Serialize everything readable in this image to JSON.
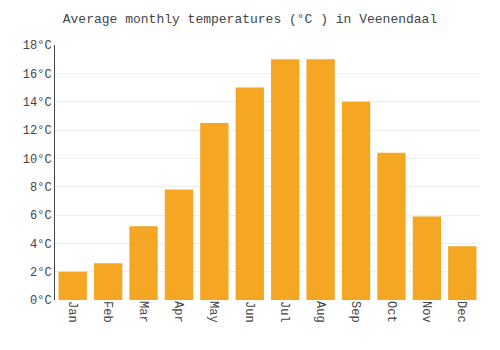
{
  "chart_data": {
    "type": "bar",
    "title": "Average monthly temperatures (°C ) in Veenendaal",
    "categories": [
      "Jan",
      "Feb",
      "Mar",
      "Apr",
      "May",
      "Jun",
      "Jul",
      "Aug",
      "Sep",
      "Oct",
      "Nov",
      "Dec"
    ],
    "values": [
      2.0,
      2.6,
      5.2,
      7.8,
      12.5,
      15.0,
      17.0,
      17.0,
      14.0,
      10.4,
      5.9,
      3.8
    ],
    "color": "#F5A623",
    "ylim": [
      0,
      18
    ],
    "yticks": [
      {
        "value": 0,
        "label": "0°C"
      },
      {
        "value": 2,
        "label": "2°C"
      },
      {
        "value": 4,
        "label": "4°C"
      },
      {
        "value": 6,
        "label": "6°C"
      },
      {
        "value": 8,
        "label": "8°C"
      },
      {
        "value": 10,
        "label": "10°C"
      },
      {
        "value": 12,
        "label": "12°C"
      },
      {
        "value": 14,
        "label": "14°C"
      },
      {
        "value": 16,
        "label": "16°C"
      },
      {
        "value": 18,
        "label": "18°C"
      }
    ],
    "grid": true
  }
}
